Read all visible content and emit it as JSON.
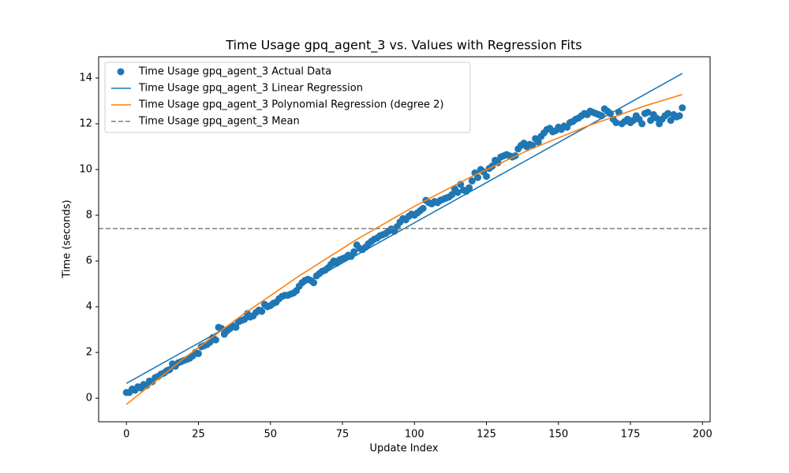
{
  "chart_data": {
    "type": "scatter",
    "title": "Time Usage gpq_agent_3 vs. Values with Regression Fits",
    "x_label": "Update Index",
    "y_label": "Time (seconds)",
    "xlim": [
      -9.65,
      202.65
    ],
    "ylim": [
      -1.03,
      14.93
    ],
    "xticks": [
      0,
      25,
      50,
      75,
      100,
      125,
      150,
      175,
      200
    ],
    "yticks": [
      0,
      2,
      4,
      6,
      8,
      10,
      12,
      14
    ],
    "legend": "upper left",
    "series": [
      {
        "name": "Time Usage gpq_agent_3 Actual Data",
        "type": "scatter",
        "color": "#1f77b4",
        "x": [
          0,
          1,
          2,
          3,
          4,
          5,
          6,
          7,
          8,
          9,
          10,
          11,
          12,
          13,
          14,
          15,
          16,
          17,
          18,
          19,
          20,
          21,
          22,
          23,
          24,
          25,
          26,
          27,
          28,
          29,
          30,
          31,
          32,
          33,
          34,
          35,
          36,
          37,
          38,
          39,
          40,
          41,
          42,
          43,
          44,
          45,
          46,
          47,
          48,
          49,
          50,
          51,
          52,
          53,
          54,
          55,
          56,
          57,
          58,
          59,
          60,
          61,
          62,
          63,
          64,
          65,
          66,
          67,
          68,
          69,
          70,
          71,
          72,
          73,
          74,
          75,
          76,
          77,
          78,
          79,
          80,
          81,
          82,
          83,
          84,
          85,
          86,
          87,
          88,
          89,
          90,
          91,
          92,
          93,
          94,
          95,
          96,
          97,
          98,
          99,
          100,
          101,
          102,
          103,
          104,
          105,
          106,
          107,
          108,
          109,
          110,
          111,
          112,
          113,
          114,
          115,
          116,
          117,
          118,
          119,
          120,
          121,
          122,
          123,
          124,
          125,
          126,
          127,
          128,
          129,
          130,
          131,
          132,
          133,
          134,
          135,
          136,
          137,
          138,
          139,
          140,
          141,
          142,
          143,
          144,
          145,
          146,
          147,
          148,
          149,
          150,
          151,
          152,
          153,
          154,
          155,
          156,
          157,
          158,
          159,
          160,
          161,
          162,
          163,
          164,
          165,
          166,
          167,
          168,
          169,
          170,
          171,
          172,
          173,
          174,
          175,
          176,
          177,
          178,
          179,
          180,
          181,
          182,
          183,
          184,
          185,
          186,
          187,
          188,
          189,
          190,
          191,
          192,
          193
        ],
        "values": [
          0.25,
          0.25,
          0.4,
          0.35,
          0.5,
          0.45,
          0.6,
          0.55,
          0.75,
          0.72,
          0.9,
          0.95,
          1.05,
          1.1,
          1.2,
          1.25,
          1.5,
          1.4,
          1.55,
          1.6,
          1.65,
          1.7,
          1.75,
          1.85,
          2.0,
          1.95,
          2.25,
          2.3,
          2.35,
          2.45,
          2.65,
          2.55,
          3.1,
          3.05,
          2.8,
          2.95,
          3.05,
          3.15,
          3.1,
          3.35,
          3.4,
          3.45,
          3.7,
          3.55,
          3.6,
          3.75,
          3.85,
          3.8,
          4.1,
          4.0,
          4.05,
          4.15,
          4.2,
          4.35,
          4.45,
          4.5,
          4.5,
          4.55,
          4.6,
          4.7,
          4.9,
          5.05,
          5.15,
          5.2,
          5.15,
          5.05,
          5.35,
          5.45,
          5.55,
          5.6,
          5.7,
          5.85,
          6.0,
          5.9,
          6.05,
          6.1,
          6.15,
          6.25,
          6.2,
          6.4,
          6.7,
          6.55,
          6.5,
          6.6,
          6.75,
          6.85,
          6.95,
          7.0,
          7.1,
          7.15,
          7.2,
          7.3,
          7.4,
          7.3,
          7.5,
          7.7,
          7.85,
          7.8,
          7.95,
          8.05,
          8.0,
          8.1,
          8.2,
          8.3,
          8.65,
          8.55,
          8.5,
          8.6,
          8.55,
          8.65,
          8.7,
          8.75,
          8.8,
          8.9,
          9.15,
          9.0,
          9.35,
          9.1,
          9.05,
          9.2,
          9.5,
          9.85,
          9.65,
          10.0,
          9.9,
          9.7,
          10.05,
          10.15,
          10.4,
          10.3,
          10.55,
          10.6,
          10.65,
          10.6,
          10.55,
          10.6,
          10.9,
          11.05,
          11.15,
          11.0,
          11.1,
          11.05,
          11.35,
          11.2,
          11.45,
          11.6,
          11.75,
          11.8,
          11.65,
          11.7,
          11.85,
          11.75,
          11.9,
          11.85,
          12.05,
          12.1,
          12.2,
          12.25,
          12.35,
          12.45,
          12.4,
          12.55,
          12.5,
          12.45,
          12.4,
          12.35,
          12.65,
          12.55,
          12.45,
          12.2,
          12.05,
          12.5,
          12.0,
          12.1,
          12.2,
          12.05,
          12.15,
          12.35,
          12.2,
          12.0,
          12.45,
          12.5,
          12.15,
          12.4,
          12.25,
          12.0,
          12.2,
          12.35,
          12.45,
          12.15,
          12.4,
          12.3,
          12.35,
          12.7
        ]
      },
      {
        "name": "Time Usage gpq_agent_3 Linear Regression",
        "type": "line",
        "color": "#1f77b4",
        "x": [
          0,
          193
        ],
        "values": [
          0.65,
          14.2
        ]
      },
      {
        "name": "Time Usage gpq_agent_3 Polynomial Regression (degree 2)",
        "type": "line",
        "color": "#ff7f0e",
        "x": [
          0,
          20,
          40,
          60,
          80,
          100,
          120,
          140,
          160,
          180,
          193
        ],
        "values": [
          -0.27,
          1.745,
          3.618,
          5.351,
          6.942,
          8.392,
          9.701,
          10.869,
          11.896,
          12.782,
          13.28
        ]
      },
      {
        "name": "Time Usage gpq_agent_3 Mean",
        "type": "hline",
        "color": "#7f7f7f",
        "dash": true,
        "values": [
          7.42
        ]
      }
    ]
  }
}
